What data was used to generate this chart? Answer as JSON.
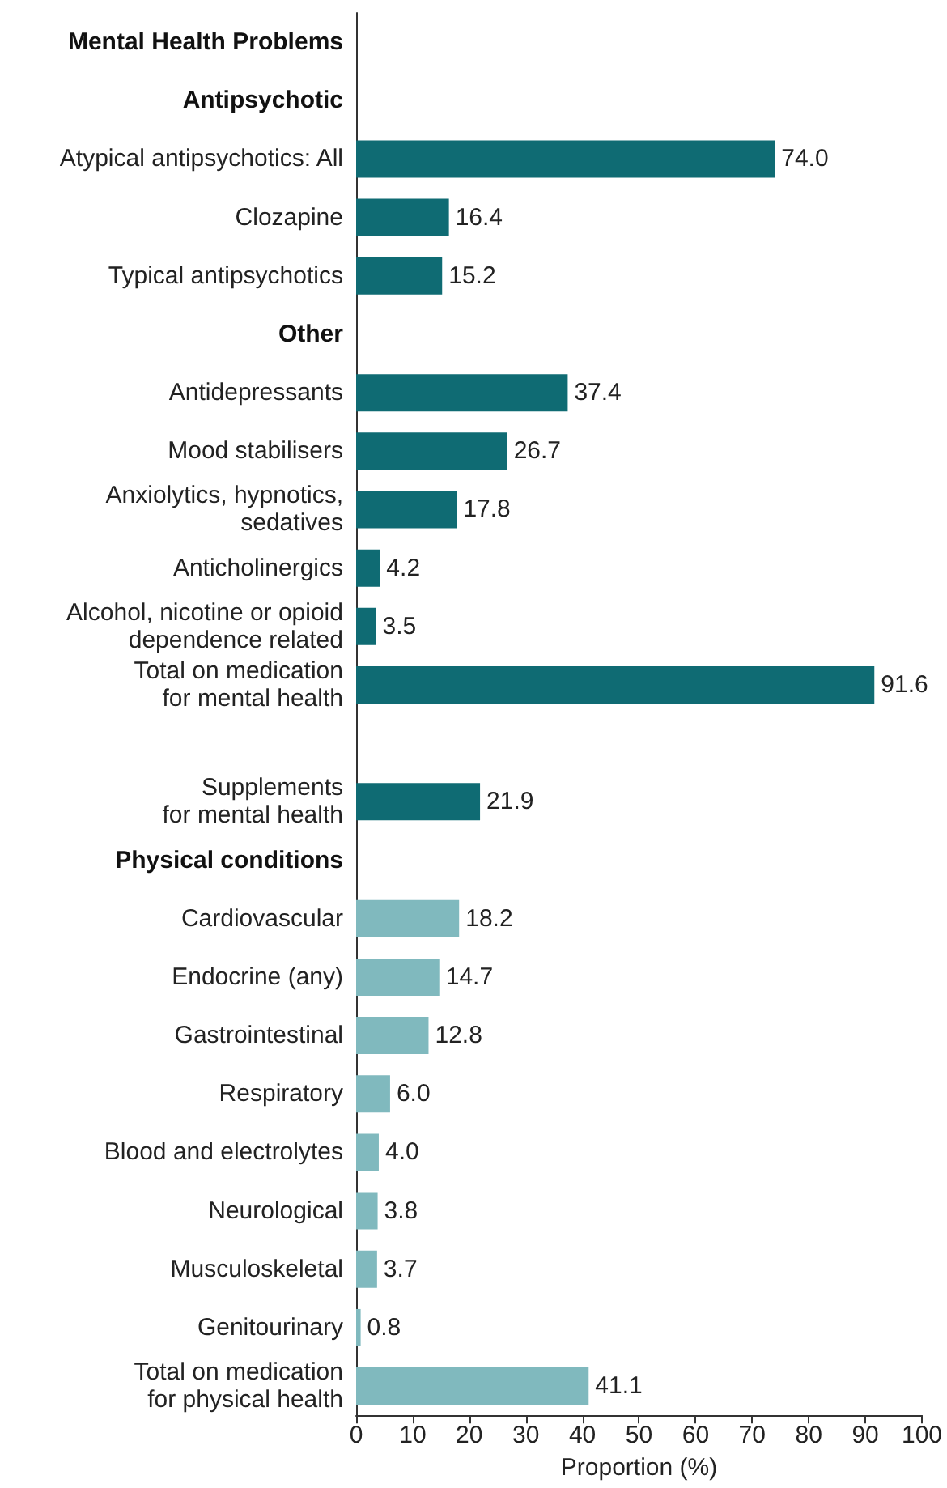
{
  "chart_data": {
    "type": "bar",
    "orientation": "horizontal",
    "xlabel": "Proportion (%)",
    "categories": [
      "Mental Health Problems",
      "Antipsychotic",
      "Atypical antipsychotics: All",
      "Clozapine",
      "Typical antipsychotics",
      "Other",
      "Antidepressants",
      "Mood stabilisers",
      "Anxiolytics, hypnotics,\nsedatives",
      "Anticholinergics",
      "Alcohol, nicotine or opioid\ndependence related",
      "Total on medication\nfor mental health",
      null,
      "Supplements\nfor mental health",
      "Physical conditions",
      "Cardiovascular",
      "Endocrine (any)",
      "Gastrointestinal",
      "Respiratory",
      "Blood and electrolytes",
      "Neurological",
      "Musculoskeletal",
      "Genitourinary",
      "Total on medication\nfor physical health"
    ],
    "values": [
      null,
      null,
      74.0,
      16.4,
      15.2,
      null,
      37.4,
      26.7,
      17.8,
      4.2,
      3.5,
      91.6,
      null,
      21.9,
      null,
      18.2,
      14.7,
      12.8,
      6.0,
      4.0,
      3.8,
      3.7,
      0.8,
      41.1
    ],
    "value_labels": [
      null,
      null,
      "74.0",
      "16.4",
      "15.2",
      null,
      "37.4",
      "26.7",
      "17.8",
      "4.2",
      "3.5",
      "91.6",
      null,
      "21.9",
      null,
      "18.2",
      "14.7",
      "12.8",
      "6.0",
      "4.0",
      "3.8",
      "3.7",
      "0.8",
      "41.1"
    ],
    "colors": [
      null,
      null,
      "#0f6b73",
      "#0f6b73",
      "#0f6b73",
      null,
      "#0f6b73",
      "#0f6b73",
      "#0f6b73",
      "#0f6b73",
      "#0f6b73",
      "#0f6b73",
      null,
      "#0f6b73",
      null,
      "#80b9be",
      "#80b9be",
      "#80b9be",
      "#80b9be",
      "#80b9be",
      "#80b9be",
      "#80b9be",
      "#80b9be",
      "#80b9be"
    ],
    "xlim": [
      0,
      100
    ],
    "xticks": [
      0,
      10,
      20,
      30,
      40,
      50,
      60,
      70,
      80,
      90,
      100
    ],
    "grid": false
  }
}
